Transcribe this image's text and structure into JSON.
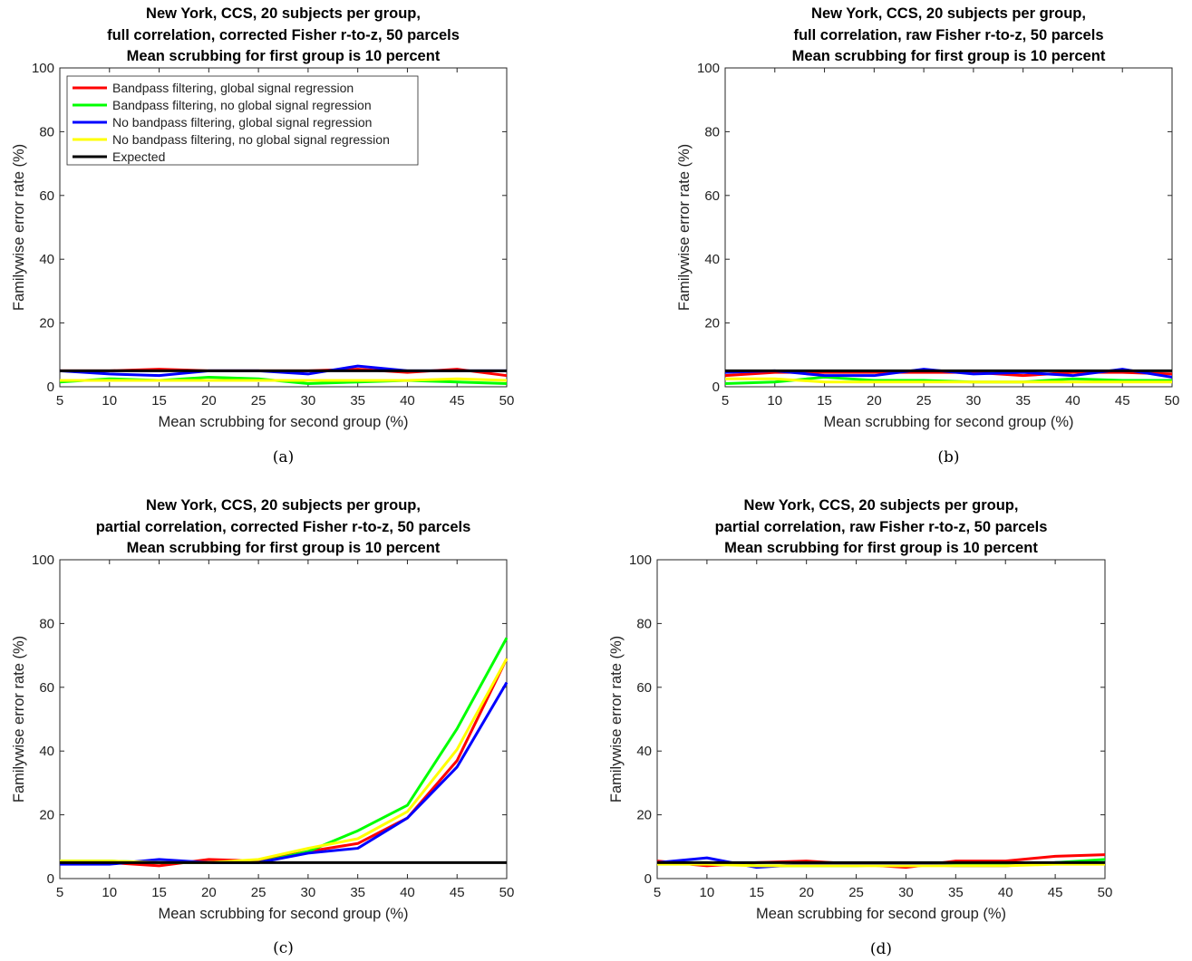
{
  "chart_data": [
    {
      "type": "line",
      "caption": "(a)",
      "title": [
        "New York, CCS, 20 subjects per group,",
        "full correlation, corrected Fisher r-to-z, 50 parcels",
        "Mean scrubbing for first group is 10 percent"
      ],
      "xlabel": "Mean scrubbing for second group (%)",
      "ylabel": "Familywise error rate (%)",
      "xlim": [
        5,
        50
      ],
      "ylim": [
        0,
        100
      ],
      "xticks": [
        5,
        10,
        15,
        20,
        25,
        30,
        35,
        40,
        45,
        50
      ],
      "yticks": [
        0,
        20,
        40,
        60,
        80,
        100
      ],
      "legend": true,
      "legend_position": "top-left",
      "x": [
        5,
        10,
        15,
        20,
        25,
        30,
        35,
        40,
        45,
        50
      ],
      "series": [
        {
          "name": "Bandpass filtering, global signal regression",
          "color": "#ff0000",
          "values": [
            5,
            5,
            5.5,
            5,
            5,
            5,
            5.5,
            4.5,
            5.5,
            3.5
          ]
        },
        {
          "name": "Bandpass filtering, no global signal regression",
          "color": "#00ff00",
          "values": [
            1.5,
            2.5,
            2,
            3,
            2.5,
            1,
            1.5,
            2,
            1.5,
            1
          ]
        },
        {
          "name": "No bandpass filtering, global signal regression",
          "color": "#0000ff",
          "values": [
            5,
            4,
            3.5,
            5,
            5,
            4,
            6.5,
            5,
            5,
            5
          ]
        },
        {
          "name": "No bandpass filtering, no global signal regression",
          "color": "#ffff00",
          "values": [
            2,
            2,
            2,
            2,
            2,
            2,
            2,
            2,
            2.5,
            2
          ]
        },
        {
          "name": "Expected",
          "color": "#000000",
          "values": [
            5,
            5,
            5,
            5,
            5,
            5,
            5,
            5,
            5,
            5
          ]
        }
      ]
    },
    {
      "type": "line",
      "caption": "(b)",
      "title": [
        "New York, CCS, 20 subjects per group,",
        "full correlation, raw Fisher r-to-z, 50 parcels",
        "Mean scrubbing for first group is 10 percent"
      ],
      "xlabel": "Mean scrubbing for second group (%)",
      "ylabel": "Familywise error rate (%)",
      "xlim": [
        5,
        50
      ],
      "ylim": [
        0,
        100
      ],
      "xticks": [
        5,
        10,
        15,
        20,
        25,
        30,
        35,
        40,
        45,
        50
      ],
      "yticks": [
        0,
        20,
        40,
        60,
        80,
        100
      ],
      "legend": false,
      "x": [
        5,
        10,
        15,
        20,
        25,
        30,
        35,
        40,
        45,
        50
      ],
      "series": [
        {
          "color": "#ff0000",
          "values": [
            3.5,
            4.5,
            4.5,
            4.5,
            4.5,
            4.5,
            3.5,
            4.5,
            4.5,
            4
          ]
        },
        {
          "color": "#00ff00",
          "values": [
            1,
            1.5,
            3,
            2,
            2,
            1.5,
            1.5,
            2.5,
            2,
            2
          ]
        },
        {
          "color": "#0000ff",
          "values": [
            4.5,
            5,
            3.5,
            3.5,
            5.5,
            4,
            4.5,
            3.5,
            5.5,
            3
          ]
        },
        {
          "color": "#ffff00",
          "values": [
            2.5,
            2.5,
            1.5,
            1.5,
            1.5,
            1.5,
            1.5,
            1.5,
            1.5,
            1.5
          ]
        },
        {
          "color": "#000000",
          "values": [
            5,
            5,
            5,
            5,
            5,
            5,
            5,
            5,
            5,
            5
          ]
        }
      ]
    },
    {
      "type": "line",
      "caption": "(c)",
      "title": [
        "New York, CCS, 20 subjects per group,",
        "partial correlation, corrected Fisher r-to-z, 50 parcels",
        "Mean scrubbing for first group is 10 percent"
      ],
      "xlabel": "Mean scrubbing for second group (%)",
      "ylabel": "Familywise error rate (%)",
      "xlim": [
        5,
        50
      ],
      "ylim": [
        0,
        100
      ],
      "xticks": [
        5,
        10,
        15,
        20,
        25,
        30,
        35,
        40,
        45,
        50
      ],
      "yticks": [
        0,
        20,
        40,
        60,
        80,
        100
      ],
      "legend": false,
      "x": [
        5,
        10,
        15,
        20,
        25,
        30,
        35,
        40,
        45,
        50
      ],
      "series": [
        {
          "color": "#ff0000",
          "values": [
            5,
            5,
            4,
            6,
            5.5,
            8.5,
            11,
            19,
            37,
            69
          ]
        },
        {
          "color": "#00ff00",
          "values": [
            5.5,
            5.5,
            5,
            5,
            5,
            8.5,
            15,
            23,
            47,
            75.5
          ]
        },
        {
          "color": "#0000ff",
          "values": [
            4.5,
            4.5,
            6,
            5,
            5,
            8,
            9.5,
            19,
            35,
            61.5
          ]
        },
        {
          "color": "#ffff00",
          "values": [
            5.5,
            5.5,
            5,
            5,
            6,
            9.5,
            12.5,
            21,
            40.5,
            69
          ]
        },
        {
          "color": "#000000",
          "values": [
            5,
            5,
            5,
            5,
            5,
            5,
            5,
            5,
            5,
            5
          ]
        }
      ]
    },
    {
      "type": "line",
      "caption": "(d)",
      "title": [
        "New York, CCS, 20 subjects per group,",
        "partial correlation, raw Fisher r-to-z, 50 parcels",
        "Mean scrubbing for first group is 10 percent"
      ],
      "xlabel": "Mean scrubbing for second group (%)",
      "ylabel": "Familywise error rate (%)",
      "xlim": [
        5,
        50
      ],
      "ylim": [
        0,
        100
      ],
      "xticks": [
        5,
        10,
        15,
        20,
        25,
        30,
        35,
        40,
        45,
        50
      ],
      "yticks": [
        0,
        20,
        40,
        60,
        80,
        100
      ],
      "legend": false,
      "x": [
        5,
        10,
        15,
        20,
        25,
        30,
        35,
        40,
        45,
        50
      ],
      "series": [
        {
          "color": "#ff0000",
          "values": [
            5.5,
            4,
            5,
            5.5,
            4.5,
            3.5,
            5.5,
            5.5,
            7,
            7.5
          ]
        },
        {
          "color": "#00ff00",
          "values": [
            5,
            5,
            4,
            4,
            4,
            4.5,
            4.5,
            4.5,
            5,
            6
          ]
        },
        {
          "color": "#0000ff",
          "values": [
            5,
            6.5,
            3.5,
            4.5,
            4.5,
            4.5,
            4,
            4,
            5,
            5
          ]
        },
        {
          "color": "#ffff00",
          "values": [
            4.5,
            4.5,
            4,
            4,
            4,
            4,
            4,
            4,
            4.5,
            4.5
          ]
        },
        {
          "color": "#000000",
          "values": [
            5,
            5,
            5,
            5,
            5,
            5,
            5,
            5,
            5,
            5
          ]
        }
      ]
    }
  ]
}
